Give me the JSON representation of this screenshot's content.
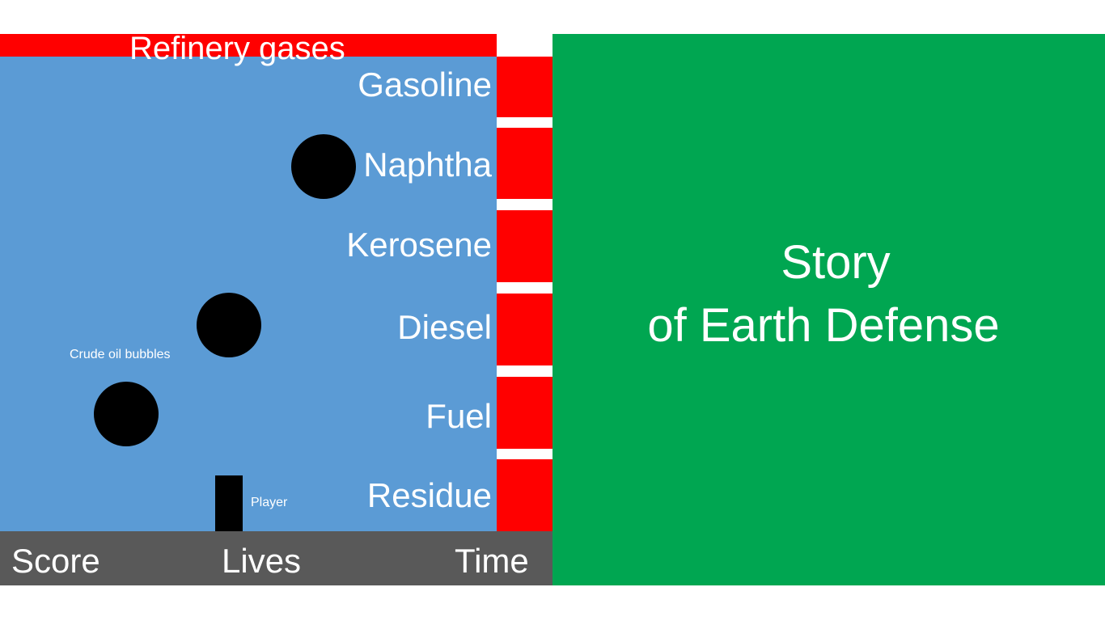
{
  "game": {
    "top_label": "Refinery gases",
    "fractions": [
      "Gasoline",
      "Naphtha",
      "Kerosene",
      "Diesel",
      "Fuel",
      "Residue"
    ],
    "bubbles_label": "Crude oil bubbles",
    "player_label": "Player",
    "bubble_count": 3
  },
  "status": {
    "score_label": "Score",
    "lives_label": "Lives",
    "time_label": "Time"
  },
  "story": {
    "line1": "Story",
    "line2": "of Earth Defense"
  },
  "colors": {
    "play_area": "#5b9bd5",
    "fraction_bars": "#ff0000",
    "status_bar": "#595959",
    "story_panel": "#00a651",
    "bubble": "#000000",
    "player": "#000000"
  }
}
